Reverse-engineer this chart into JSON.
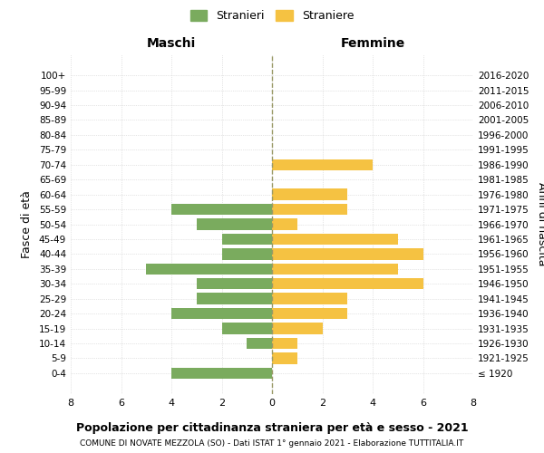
{
  "age_groups": [
    "100+",
    "95-99",
    "90-94",
    "85-89",
    "80-84",
    "75-79",
    "70-74",
    "65-69",
    "60-64",
    "55-59",
    "50-54",
    "45-49",
    "40-44",
    "35-39",
    "30-34",
    "25-29",
    "20-24",
    "15-19",
    "10-14",
    "5-9",
    "0-4"
  ],
  "birth_years": [
    "≤ 1920",
    "1921-1925",
    "1926-1930",
    "1931-1935",
    "1936-1940",
    "1941-1945",
    "1946-1950",
    "1951-1955",
    "1956-1960",
    "1961-1965",
    "1966-1970",
    "1971-1975",
    "1976-1980",
    "1981-1985",
    "1986-1990",
    "1991-1995",
    "1996-2000",
    "2001-2005",
    "2006-2010",
    "2011-2015",
    "2016-2020"
  ],
  "maschi": [
    0,
    0,
    0,
    0,
    0,
    0,
    0,
    0,
    0,
    4,
    3,
    2,
    2,
    5,
    3,
    3,
    4,
    2,
    1,
    0,
    4
  ],
  "femmine": [
    0,
    0,
    0,
    0,
    0,
    0,
    4,
    0,
    3,
    3,
    1,
    5,
    6,
    5,
    6,
    3,
    3,
    2,
    1,
    1,
    0
  ],
  "maschi_color": "#7aab5e",
  "femmine_color": "#f5c242",
  "title": "Popolazione per cittadinanza straniera per età e sesso - 2021",
  "subtitle": "COMUNE DI NOVATE MEZZOLA (SO) - Dati ISTAT 1° gennaio 2021 - Elaborazione TUTTITALIA.IT",
  "xlabel_left": "Maschi",
  "xlabel_right": "Femmine",
  "ylabel_left": "Fasce di età",
  "ylabel_right": "Anni di nascita",
  "legend_maschi": "Stranieri",
  "legend_femmine": "Straniere",
  "xlim": 8,
  "background_color": "#ffffff",
  "grid_color": "#cccccc"
}
